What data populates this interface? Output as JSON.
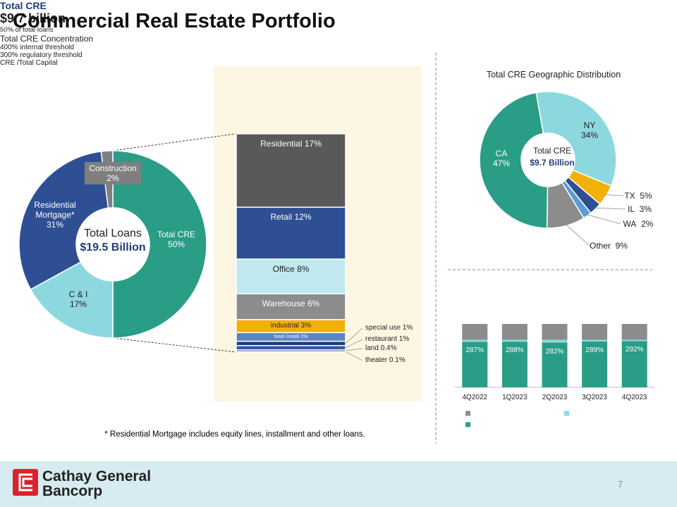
{
  "title": "Commercial Real Estate Portfolio",
  "footnote": "* Residential Mortgage includes equity lines, installment and other loans.",
  "logo": {
    "line1": "Cathay General",
    "line2": "Bancorp"
  },
  "page_number": "7",
  "chart_data": [
    {
      "type": "donut",
      "center_title": "Total Loans",
      "center_value": "$19.5 Billion",
      "categories": [
        "Total CRE",
        "C & I",
        "Residential Mortgage*",
        "Construction"
      ],
      "values": [
        50,
        17,
        31,
        2
      ],
      "value_labels": [
        "50%",
        "17%",
        "31%",
        "2%"
      ],
      "colors": [
        "#2a9d87",
        "#8dd8df",
        "#2e4f93",
        "#7f7f7f"
      ]
    },
    {
      "type": "stacked_column",
      "title": "Total CRE",
      "subtitle": "$9.7 billion",
      "note": "50% of total loans",
      "categories": [
        "Residential",
        "Retail",
        "Office",
        "Warehouse",
        "industrial",
        "hotel /motel",
        "special use",
        "restaurant",
        "land",
        "theater"
      ],
      "values": [
        17,
        12,
        8,
        6,
        3,
        2,
        1,
        1,
        0.4,
        0.1
      ],
      "value_labels": [
        "17%",
        "12%",
        "8%",
        "6%",
        "3%",
        "2%",
        "1%",
        "1%",
        "0.4%",
        "0.1%"
      ],
      "colors": [
        "#595959",
        "#2e4f93",
        "#bfe9ee",
        "#8c8c8c",
        "#f2b00a",
        "#5b84c4",
        "#1f3e7a",
        "#2e5aa8",
        "#1b3b6f",
        "#203864"
      ]
    },
    {
      "type": "donut",
      "title": "Total CRE Geographic Distribution",
      "center_title": "Total CRE",
      "center_value": "$9.7 Billion",
      "categories": [
        "NY",
        "TX",
        "IL",
        "WA",
        "Other",
        "CA"
      ],
      "values": [
        34,
        5,
        3,
        2,
        9,
        47
      ],
      "value_labels": [
        "34%",
        "5%",
        "3%",
        "2%",
        "9%",
        "47%"
      ],
      "colors": [
        "#8dd8df",
        "#f2b00a",
        "#2e4f93",
        "#5b9bd5",
        "#8c8c8c",
        "#2a9d87"
      ]
    },
    {
      "type": "bar",
      "stacked": true,
      "title": "Total CRE Concentration",
      "categories": [
        "4Q2022",
        "1Q2023",
        "2Q2023",
        "3Q2023",
        "4Q2023"
      ],
      "ylim": [
        0,
        400
      ],
      "series": [
        {
          "name": "400% internal threshold",
          "color": "#8c8c8c",
          "values": [
            100,
            100,
            100,
            100,
            100
          ]
        },
        {
          "name": "300% regulatory threshold",
          "color": "#8dd8df",
          "values": [
            13,
            12,
            18,
            11,
            8
          ]
        },
        {
          "name": "CRE /Total Capital",
          "color": "#2a9d87",
          "values": [
            287,
            288,
            282,
            289,
            292
          ],
          "value_labels": [
            "287%",
            "288%",
            "282%",
            "289%",
            "292%"
          ]
        }
      ]
    }
  ]
}
